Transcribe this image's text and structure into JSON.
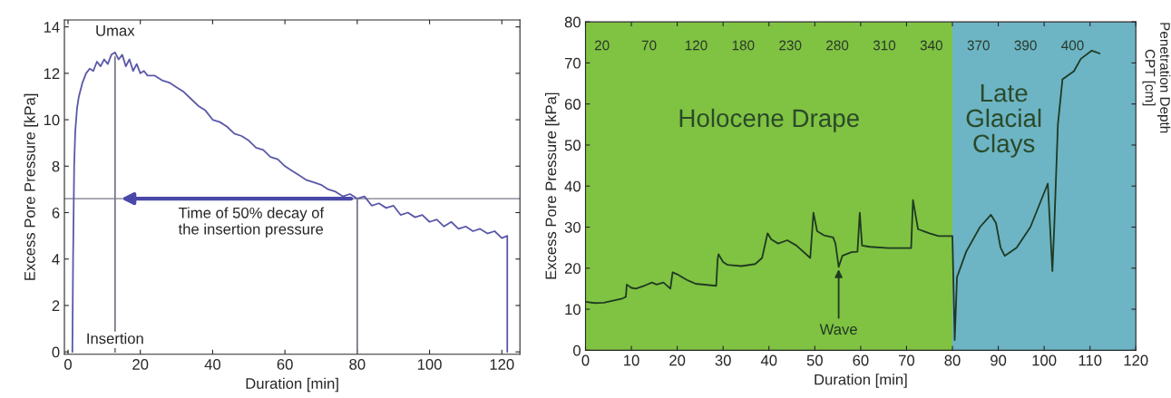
{
  "chart_data": [
    {
      "type": "line",
      "xlabel": "Duration [min]",
      "ylabel": "Excess Pore Pressure [kPa]",
      "xlim": [
        -1,
        125
      ],
      "ylim": [
        -0.1,
        14.3
      ],
      "xticks": [
        0,
        20,
        40,
        60,
        80,
        100,
        120
      ],
      "yticks": [
        0,
        2,
        4,
        6,
        8,
        10,
        12,
        14
      ],
      "grid": false,
      "legend": false,
      "series": [
        {
          "color": "#5a58a8",
          "x": [
            1.2,
            1.4,
            1.7,
            2,
            2.5,
            3,
            3.5,
            4,
            5,
            6,
            7,
            8,
            9,
            10,
            11,
            12,
            13,
            14,
            15,
            16,
            17,
            18,
            19,
            20,
            21,
            22,
            24,
            26,
            28,
            30,
            32,
            34,
            36,
            38,
            40,
            42,
            44,
            46,
            48,
            50,
            52,
            54,
            56,
            58,
            60,
            62,
            64,
            66,
            68,
            70,
            72,
            74,
            76,
            78,
            80,
            82,
            84,
            86,
            88,
            90,
            92,
            94,
            96,
            98,
            100,
            102,
            104,
            106,
            108,
            110,
            112,
            114,
            116,
            118,
            120,
            121.5,
            121.5
          ],
          "values": [
            0,
            4,
            8,
            9.5,
            10.5,
            11,
            11.3,
            11.6,
            12,
            12.2,
            12.1,
            12.5,
            12.3,
            12.6,
            12.4,
            12.8,
            12.9,
            12.6,
            12.8,
            12.3,
            12.6,
            12.1,
            12.4,
            12.0,
            12.1,
            11.9,
            11.9,
            11.7,
            11.6,
            11.4,
            11.2,
            10.9,
            10.6,
            10.4,
            10.0,
            9.9,
            9.7,
            9.4,
            9.3,
            9.1,
            8.8,
            8.7,
            8.4,
            8.3,
            8.0,
            7.8,
            7.6,
            7.4,
            7.3,
            7.2,
            7.0,
            6.9,
            6.7,
            6.8,
            6.6,
            6.7,
            6.3,
            6.4,
            6.2,
            6.3,
            5.9,
            6.0,
            5.8,
            5.9,
            5.6,
            5.7,
            5.4,
            5.6,
            5.3,
            5.4,
            5.2,
            5.3,
            5.1,
            5.2,
            4.9,
            5.0,
            0
          ]
        },
        {
          "color": "#777788",
          "x": [
            13,
            13
          ],
          "values": [
            0,
            12.7
          ]
        },
        {
          "color": "#777788",
          "x": [
            80,
            80
          ],
          "values": [
            0,
            6.6
          ]
        }
      ],
      "ref_lines": [
        {
          "axis": "y",
          "value": 6.6,
          "color": "#777788"
        }
      ],
      "annotations": [
        "Umax",
        "Insertion",
        "Time of 50% decay of\nthe insertion pressure"
      ]
    },
    {
      "type": "line",
      "xlabel": "Duration [min]",
      "ylabel": "Excess Pore Pressure [kPa]",
      "x2label": "Penetration Depth\nCPT [cm]",
      "xlim": [
        0,
        120
      ],
      "ylim": [
        0,
        80
      ],
      "xticks": [
        0,
        10,
        20,
        30,
        40,
        50,
        60,
        70,
        80,
        90,
        100,
        110,
        120
      ],
      "yticks": [
        0,
        10,
        20,
        30,
        40,
        50,
        60,
        70,
        80
      ],
      "grid": false,
      "legend": false,
      "bands": [
        {
          "axis": "x",
          "from": 0,
          "to": 80,
          "label": "Holocene Drape",
          "color": "#80c242"
        },
        {
          "axis": "x",
          "from": 80,
          "to": 120,
          "label": "Late\nGlacial\nClays",
          "color": "#6db4c4"
        }
      ],
      "series": [
        {
          "color": "#1e3a22",
          "x": [
            0,
            2,
            4,
            8,
            8.8,
            9,
            10,
            11,
            13,
            14.5,
            15.5,
            17,
            18,
            18.5,
            19,
            20,
            22,
            24,
            28.5,
            28.8,
            29,
            30,
            31,
            34,
            37,
            38.5,
            39.7,
            40.5,
            42,
            44,
            46,
            49,
            49.7,
            50.5,
            52,
            54,
            54.5,
            55.2,
            56,
            58,
            59.3,
            59.8,
            60.3,
            62,
            66,
            71,
            71.4,
            72.5,
            75,
            77,
            80,
            80.5,
            81,
            83,
            86,
            88.4,
            89.5,
            90.5,
            91.4,
            94,
            97,
            100.8,
            101.8,
            102.2,
            103,
            104,
            106.5,
            108,
            110.4,
            112.1
          ],
          "values": [
            11.8,
            11.5,
            11.6,
            12.6,
            13,
            16,
            15.2,
            15,
            15.8,
            16.5,
            16,
            16.5,
            15.5,
            15,
            19,
            18.5,
            17.2,
            16.2,
            15.7,
            22,
            23.4,
            21.5,
            20.8,
            20.5,
            21,
            22.5,
            28.5,
            27,
            26,
            26.8,
            25.5,
            22.5,
            33.5,
            29,
            28,
            27.5,
            26,
            20.3,
            23,
            23.9,
            24,
            33.5,
            25.5,
            25.2,
            24.9,
            24.9,
            36.6,
            29.5,
            28.5,
            27.8,
            27.8,
            2.5,
            17.8,
            24,
            30,
            33,
            31,
            25,
            23,
            25,
            30,
            40.6,
            19.3,
            30,
            55,
            66,
            68,
            71,
            73,
            72.3
          ]
        }
      ],
      "annotations": [
        {
          "text": "Wave",
          "x": 55.2,
          "y": 20.3
        },
        "20",
        "70",
        "120",
        "180",
        "230",
        "280",
        "310",
        "340",
        "370",
        "390",
        "400"
      ]
    }
  ]
}
